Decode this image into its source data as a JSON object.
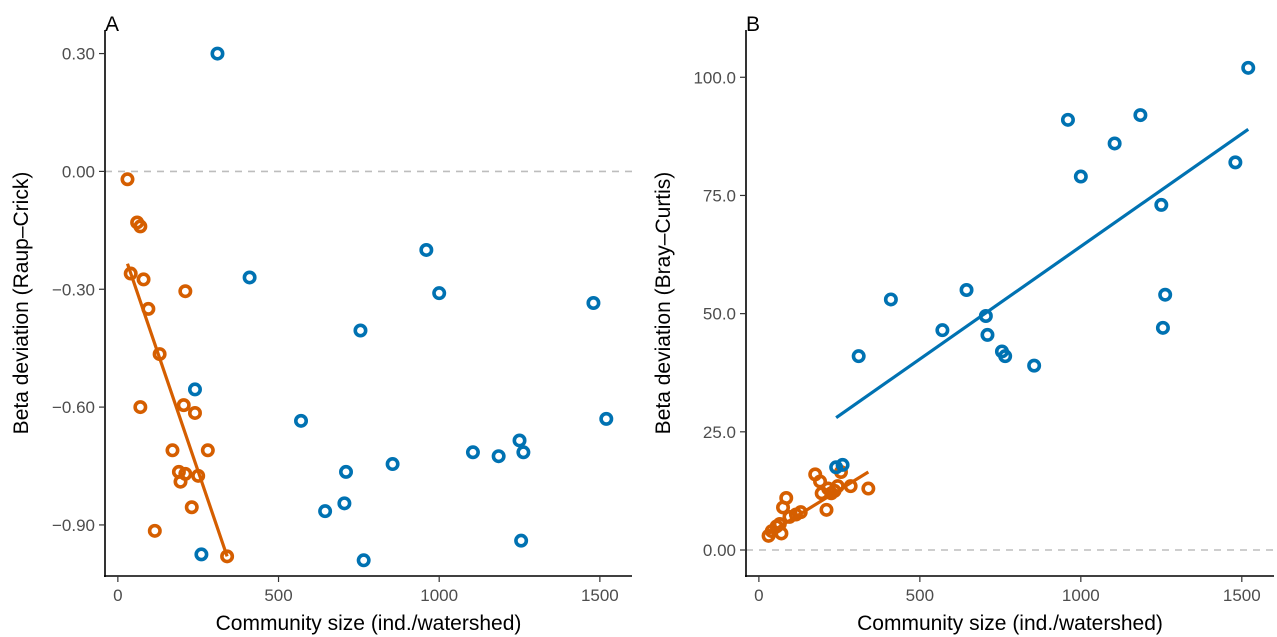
{
  "chart_data": [
    {
      "type": "scatter",
      "panel_label": "A",
      "xlabel": "Community size (ind./watershed)",
      "ylabel": "Beta deviation (Raup–Crick)",
      "xlim": [
        -40,
        1600
      ],
      "ylim": [
        -1.03,
        0.36
      ],
      "xticks": [
        0,
        500,
        1000,
        1500
      ],
      "xtick_labels": [
        "0",
        "500",
        "1000",
        "1500"
      ],
      "yticks": [
        -0.9,
        -0.6,
        -0.3,
        0.0,
        0.3
      ],
      "ytick_labels": [
        "−0.90",
        "−0.60",
        "−0.30",
        "0.00",
        "0.30"
      ],
      "reference_line": {
        "y": 0.0,
        "style": "dashed"
      },
      "grid": false,
      "series": [
        {
          "color": "#D55E00",
          "points": [
            {
              "x": 30,
              "y": -0.02
            },
            {
              "x": 40,
              "y": -0.26
            },
            {
              "x": 60,
              "y": -0.13
            },
            {
              "x": 70,
              "y": -0.14
            },
            {
              "x": 70,
              "y": -0.6
            },
            {
              "x": 80,
              "y": -0.275
            },
            {
              "x": 95,
              "y": -0.35
            },
            {
              "x": 115,
              "y": -0.915
            },
            {
              "x": 130,
              "y": -0.465
            },
            {
              "x": 170,
              "y": -0.71
            },
            {
              "x": 190,
              "y": -0.765
            },
            {
              "x": 195,
              "y": -0.79
            },
            {
              "x": 205,
              "y": -0.595
            },
            {
              "x": 210,
              "y": -0.77
            },
            {
              "x": 210,
              "y": -0.305
            },
            {
              "x": 230,
              "y": -0.855
            },
            {
              "x": 240,
              "y": -0.615
            },
            {
              "x": 250,
              "y": -0.775
            },
            {
              "x": 280,
              "y": -0.71
            },
            {
              "x": 340,
              "y": -0.98
            }
          ],
          "fit": {
            "x": [
              30,
              340
            ],
            "y": [
              -0.235,
              -0.98
            ]
          }
        },
        {
          "color": "#0072B2",
          "points": [
            {
              "x": 240,
              "y": -0.555
            },
            {
              "x": 260,
              "y": -0.975
            },
            {
              "x": 310,
              "y": 0.3
            },
            {
              "x": 410,
              "y": -0.27
            },
            {
              "x": 570,
              "y": -0.635
            },
            {
              "x": 645,
              "y": -0.865
            },
            {
              "x": 705,
              "y": -0.845
            },
            {
              "x": 710,
              "y": -0.765
            },
            {
              "x": 755,
              "y": -0.405
            },
            {
              "x": 765,
              "y": -0.99
            },
            {
              "x": 855,
              "y": -0.745
            },
            {
              "x": 960,
              "y": -0.2
            },
            {
              "x": 1000,
              "y": -0.31
            },
            {
              "x": 1105,
              "y": -0.715
            },
            {
              "x": 1185,
              "y": -0.725
            },
            {
              "x": 1250,
              "y": -0.685
            },
            {
              "x": 1255,
              "y": -0.94
            },
            {
              "x": 1262,
              "y": -0.715
            },
            {
              "x": 1480,
              "y": -0.335
            },
            {
              "x": 1520,
              "y": -0.63
            }
          ]
        }
      ]
    },
    {
      "type": "scatter",
      "panel_label": "B",
      "xlabel": "Community size (ind./watershed)",
      "ylabel": "Beta deviation (Bray–Curtis)",
      "xlim": [
        -40,
        1600
      ],
      "ylim": [
        -5.5,
        110
      ],
      "xticks": [
        0,
        500,
        1000,
        1500
      ],
      "xtick_labels": [
        "0",
        "500",
        "1000",
        "1500"
      ],
      "yticks": [
        0,
        25,
        50,
        75,
        100
      ],
      "ytick_labels": [
        "0.00",
        "25.0",
        "50.0",
        "75.0",
        "100.0"
      ],
      "reference_line": {
        "y": 0.0,
        "style": "dashed"
      },
      "grid": false,
      "series": [
        {
          "color": "#D55E00",
          "points": [
            {
              "x": 30,
              "y": 3
            },
            {
              "x": 40,
              "y": 4
            },
            {
              "x": 55,
              "y": 5
            },
            {
              "x": 65,
              "y": 5.5
            },
            {
              "x": 70,
              "y": 3.5
            },
            {
              "x": 75,
              "y": 9
            },
            {
              "x": 85,
              "y": 11
            },
            {
              "x": 95,
              "y": 7
            },
            {
              "x": 115,
              "y": 7.5
            },
            {
              "x": 130,
              "y": 8
            },
            {
              "x": 175,
              "y": 16
            },
            {
              "x": 190,
              "y": 14.5
            },
            {
              "x": 195,
              "y": 12
            },
            {
              "x": 210,
              "y": 8.5
            },
            {
              "x": 215,
              "y": 13
            },
            {
              "x": 225,
              "y": 12
            },
            {
              "x": 235,
              "y": 12.5
            },
            {
              "x": 245,
              "y": 13.5
            },
            {
              "x": 255,
              "y": 16.5
            },
            {
              "x": 285,
              "y": 13.5
            },
            {
              "x": 340,
              "y": 13
            }
          ],
          "fit": {
            "x": [
              30,
              340
            ],
            "y": [
              3.5,
              16.5
            ]
          }
        },
        {
          "color": "#0072B2",
          "points": [
            {
              "x": 240,
              "y": 17.5
            },
            {
              "x": 260,
              "y": 18
            },
            {
              "x": 310,
              "y": 41
            },
            {
              "x": 410,
              "y": 53
            },
            {
              "x": 570,
              "y": 46.5
            },
            {
              "x": 645,
              "y": 55
            },
            {
              "x": 705,
              "y": 49.5
            },
            {
              "x": 710,
              "y": 45.5
            },
            {
              "x": 755,
              "y": 42
            },
            {
              "x": 765,
              "y": 41
            },
            {
              "x": 855,
              "y": 39
            },
            {
              "x": 960,
              "y": 91
            },
            {
              "x": 1000,
              "y": 79
            },
            {
              "x": 1105,
              "y": 86
            },
            {
              "x": 1185,
              "y": 92
            },
            {
              "x": 1250,
              "y": 73
            },
            {
              "x": 1255,
              "y": 47
            },
            {
              "x": 1262,
              "y": 54
            },
            {
              "x": 1480,
              "y": 82
            },
            {
              "x": 1520,
              "y": 102
            }
          ],
          "fit": {
            "x": [
              240,
              1520
            ],
            "y": [
              28,
              89
            ]
          }
        }
      ]
    }
  ]
}
